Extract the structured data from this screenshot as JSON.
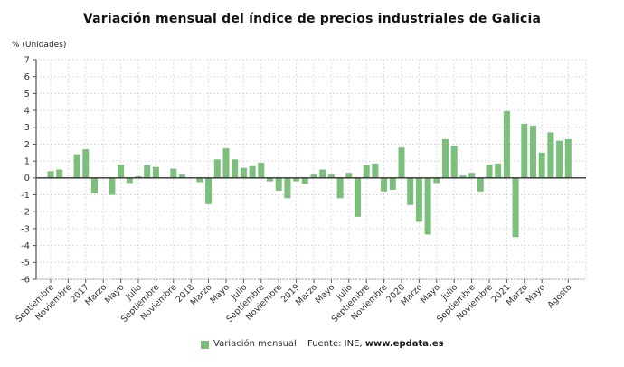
{
  "header": {
    "title": "Variación mensual del índice de precios industriales de Galicia"
  },
  "chart_data": {
    "type": "bar",
    "title": "Variación mensual del índice de precios industriales de Galicia",
    "ylabel": "% (Unidades)",
    "xlabel": "",
    "ylim": [
      -6,
      7
    ],
    "yticks": [
      7,
      6,
      5,
      4,
      3,
      2,
      1,
      0,
      -1,
      -2,
      -3,
      -4,
      -5,
      -6
    ],
    "grid": true,
    "bar_color": "#7cbe7c",
    "legend_position": "bottom",
    "legend_label": "Variación mensual",
    "source_label": "Fuente: INE,",
    "source_link": "www.epdata.es",
    "categories": [
      "Septiembre 2016",
      "Octubre 2016",
      "Noviembre 2016",
      "Diciembre 2016",
      "Enero 2017",
      "Febrero 2017",
      "Marzo 2017",
      "Abril 2017",
      "Mayo 2017",
      "Junio 2017",
      "Julio 2017",
      "Agosto 2017",
      "Septiembre 2017",
      "Octubre 2017",
      "Noviembre 2017",
      "Diciembre 2017",
      "Enero 2018",
      "Febrero 2018",
      "Marzo 2018",
      "Abril 2018",
      "Mayo 2018",
      "Junio 2018",
      "Julio 2018",
      "Agosto 2018",
      "Septiembre 2018",
      "Octubre 2018",
      "Noviembre 2018",
      "Diciembre 2018",
      "Enero 2019",
      "Febrero 2019",
      "Marzo 2019",
      "Abril 2019",
      "Mayo 2019",
      "Junio 2019",
      "Julio 2019",
      "Agosto 2019",
      "Septiembre 2019",
      "Octubre 2019",
      "Noviembre 2019",
      "Diciembre 2019",
      "Enero 2020",
      "Febrero 2020",
      "Marzo 2020",
      "Abril 2020",
      "Mayo 2020",
      "Junio 2020",
      "Julio 2020",
      "Agosto 2020",
      "Septiembre 2020",
      "Octubre 2020",
      "Noviembre 2020",
      "Diciembre 2020",
      "Enero 2021",
      "Febrero 2021",
      "Marzo 2021",
      "Abril 2021",
      "Mayo 2021",
      "Junio 2021",
      "Julio 2021",
      "Agosto 2021"
    ],
    "values": [
      0.4,
      0.5,
      0,
      1.4,
      1.7,
      -0.9,
      0,
      -1,
      0.8,
      -0.3,
      0.1,
      0.75,
      0.65,
      0,
      0.55,
      0.2,
      0,
      -0.25,
      -1.55,
      1.1,
      1.75,
      1.1,
      0.6,
      0.7,
      0.9,
      -0.2,
      -0.75,
      -1.2,
      -0.2,
      -0.35,
      0.2,
      0.5,
      0.2,
      -1.2,
      0.3,
      -2.3,
      0.75,
      0.85,
      -0.8,
      -0.7,
      1.8,
      -1.6,
      -2.6,
      -3.35,
      -0.3,
      2.3,
      1.9,
      0.15,
      0.3,
      -0.8,
      0.8,
      0.85,
      3.95,
      -3.5,
      3.2,
      3.1,
      1.5,
      2.7,
      2.2,
      2.3
    ],
    "x_ticks": [
      {
        "index": 0,
        "label": "Septiembre"
      },
      {
        "index": 2,
        "label": "Noviembre"
      },
      {
        "index": 4,
        "label": "2017"
      },
      {
        "index": 6,
        "label": "Marzo"
      },
      {
        "index": 8,
        "label": "Mayo"
      },
      {
        "index": 10,
        "label": "Julio"
      },
      {
        "index": 12,
        "label": "Septiembre"
      },
      {
        "index": 14,
        "label": "Noviembre"
      },
      {
        "index": 16,
        "label": "2018"
      },
      {
        "index": 18,
        "label": "Marzo"
      },
      {
        "index": 20,
        "label": "Mayo"
      },
      {
        "index": 22,
        "label": "Julio"
      },
      {
        "index": 24,
        "label": "Septiembre"
      },
      {
        "index": 26,
        "label": "Noviembre"
      },
      {
        "index": 28,
        "label": "2019"
      },
      {
        "index": 30,
        "label": "Marzo"
      },
      {
        "index": 32,
        "label": "Mayo"
      },
      {
        "index": 34,
        "label": "Julio"
      },
      {
        "index": 36,
        "label": "Septiembre"
      },
      {
        "index": 38,
        "label": "Noviembre"
      },
      {
        "index": 40,
        "label": "2020"
      },
      {
        "index": 42,
        "label": "Marzo"
      },
      {
        "index": 44,
        "label": "Mayo"
      },
      {
        "index": 46,
        "label": "Julio"
      },
      {
        "index": 48,
        "label": "Septiembre"
      },
      {
        "index": 50,
        "label": "Noviembre"
      },
      {
        "index": 52,
        "label": "2021"
      },
      {
        "index": 54,
        "label": "Marzo"
      },
      {
        "index": 56,
        "label": "Mayo"
      },
      {
        "index": 59,
        "label": "Agosto"
      }
    ]
  }
}
